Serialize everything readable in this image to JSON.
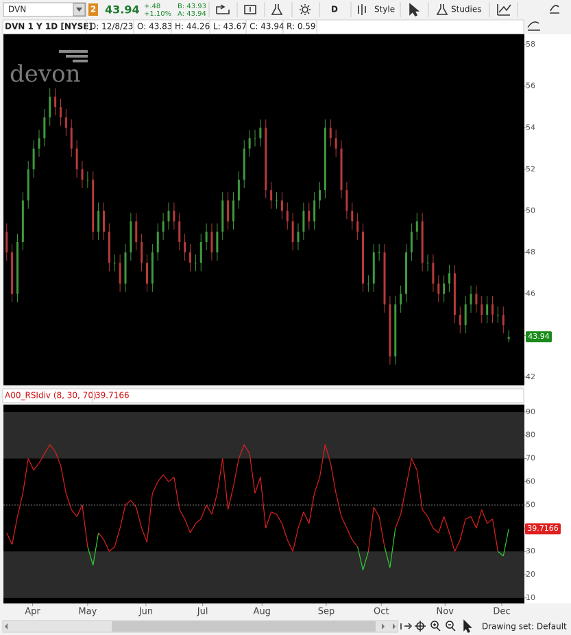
{
  "toolbar": {
    "symbol": "DVN",
    "link": "2",
    "last": "43.94",
    "change": "+.48",
    "change_pct": "+1.10%",
    "bid": "B: 43.93",
    "ask": "A: 43.94",
    "aggregation": "D",
    "style": "Style",
    "studies": "Studies"
  },
  "header": {
    "title": "DVN 1 Y 1D [NYSE]",
    "date": "D: 12/8/23",
    "open": "O: 43.83",
    "high": "H: 44.26",
    "low": "L: 43.67",
    "close": "C: 43.94",
    "range": "R: 0.59"
  },
  "watermark": "devon",
  "footer": {
    "drawing_set": "Drawing set: Default"
  },
  "chart_data": [
    {
      "type": "candlestick",
      "up_color": "#3f9a3f",
      "down_color": "#b83a3a",
      "label_color": "#1a8a1a",
      "open": [
        49,
        48,
        46,
        48.5,
        50.5,
        52,
        53,
        53.5,
        54.5,
        55.5,
        55,
        54.5,
        54,
        53,
        52,
        51.5,
        51.5,
        49,
        50,
        49,
        47.5,
        47.5,
        46.5,
        48,
        49.5,
        48.5,
        47.5,
        46.5,
        48,
        49,
        49.5,
        50,
        49.5,
        48.5,
        48,
        47.5,
        47.5,
        48.5,
        49,
        48,
        49,
        50.5,
        49.5,
        50.5,
        51.5,
        53,
        53.5,
        53.5,
        54,
        51,
        50.5,
        50.5,
        50,
        49.5,
        48.5,
        49,
        50,
        49.5,
        50.5,
        51,
        54,
        53.5,
        53,
        51,
        50,
        49.5,
        49,
        46.5,
        46.5,
        48,
        48,
        45.5,
        43,
        45.5,
        46,
        48,
        49,
        49.5,
        47.5,
        47.5,
        46.5,
        46,
        46.5,
        47,
        45,
        44.5,
        45.5,
        46,
        45.5,
        45,
        45.5,
        45,
        45,
        43.83
      ],
      "high": [
        49.4,
        48.4,
        48.9,
        50.9,
        52.4,
        53.4,
        53.9,
        54.9,
        55.9,
        55.9,
        55.4,
        54.9,
        54.4,
        53.4,
        52.4,
        51.9,
        51.9,
        50.4,
        50.4,
        49.4,
        47.9,
        47.9,
        48.4,
        49.9,
        49.9,
        48.9,
        47.9,
        48.4,
        49.4,
        49.9,
        50.4,
        50.4,
        49.9,
        48.9,
        48.4,
        47.9,
        48.9,
        49.4,
        49.4,
        49.4,
        50.9,
        50.9,
        50.9,
        51.9,
        53.4,
        53.9,
        53.9,
        54.4,
        54.4,
        51.4,
        50.9,
        50.9,
        50.4,
        49.9,
        49.4,
        50.4,
        50.4,
        50.9,
        51.4,
        54.4,
        54.4,
        53.9,
        53.4,
        51.4,
        50.4,
        49.9,
        49.4,
        46.9,
        48.4,
        48.4,
        48.4,
        45.9,
        45.9,
        46.4,
        48.4,
        49.4,
        49.9,
        49.9,
        47.9,
        47.9,
        46.9,
        46.9,
        47.4,
        47.4,
        45.4,
        45.9,
        46.4,
        46.4,
        45.9,
        45.9,
        45.9,
        45.4,
        45.4,
        44.26
      ],
      "low": [
        47.6,
        45.6,
        45.6,
        48.1,
        50.1,
        51.6,
        52.6,
        53.1,
        54.1,
        54.6,
        54.1,
        53.6,
        52.6,
        51.6,
        51.1,
        51.1,
        48.6,
        48.6,
        48.6,
        47.1,
        47.1,
        46.1,
        46.1,
        47.6,
        48.1,
        47.1,
        46.1,
        46.1,
        47.6,
        48.6,
        49.1,
        49.1,
        48.1,
        47.6,
        47.1,
        47.1,
        47.1,
        48.1,
        47.6,
        47.6,
        48.6,
        49.1,
        49.1,
        50.1,
        51.1,
        52.6,
        53.1,
        53.1,
        50.6,
        50.1,
        50.1,
        49.6,
        49.1,
        48.1,
        48.1,
        48.6,
        49.1,
        49.1,
        50.1,
        50.6,
        53.1,
        52.6,
        50.6,
        49.6,
        49.1,
        48.6,
        46.1,
        46.1,
        46.1,
        47.6,
        45.1,
        42.6,
        42.6,
        45.1,
        45.6,
        47.6,
        48.6,
        47.1,
        47.1,
        46.1,
        45.6,
        45.6,
        46.1,
        44.6,
        44.1,
        44.1,
        45.1,
        45.1,
        44.6,
        44.6,
        44.6,
        44.6,
        44.1,
        43.67
      ],
      "close": [
        48,
        46,
        48.5,
        50.5,
        52,
        53,
        53.5,
        54.5,
        55.5,
        55,
        54.5,
        54,
        53,
        52,
        51.5,
        51.5,
        49,
        50,
        49,
        47.5,
        47.5,
        46.5,
        48,
        49.5,
        48.5,
        47.5,
        46.5,
        48,
        49,
        49.5,
        50,
        49.5,
        48.5,
        48,
        47.5,
        47.5,
        48.5,
        49,
        48,
        49,
        50.5,
        49.5,
        50.5,
        51.5,
        53,
        53.5,
        53.5,
        54,
        51,
        50.5,
        50.5,
        50,
        49.5,
        48.5,
        49,
        50,
        49.5,
        50.5,
        51,
        54,
        53.5,
        53,
        51,
        50,
        49.5,
        49,
        46.5,
        46.5,
        48,
        48,
        45.5,
        43,
        45.5,
        46,
        48,
        49,
        49.5,
        47.5,
        47.5,
        46.5,
        46,
        46.5,
        47,
        45,
        44.5,
        45.5,
        46,
        45.5,
        45,
        45.5,
        45,
        45,
        44.5,
        43.94
      ],
      "xlim": [
        -0.6,
        95.9
      ],
      "ylim": [
        41.6,
        58.5
      ],
      "yticks": [
        42,
        44,
        46,
        48,
        50,
        52,
        54,
        56,
        58
      ]
    },
    {
      "type": "line",
      "title": "A00_RSIdiv (8, 30, 70)",
      "color": "#e02020",
      "oversold_color": "#33cc33",
      "label_color": "#e02020",
      "values": [
        38,
        33,
        45,
        55,
        70,
        65,
        68,
        72,
        76,
        73,
        67,
        55,
        48,
        45,
        50,
        32,
        24,
        38,
        35,
        30,
        32,
        40,
        50,
        52,
        49,
        40,
        34,
        55,
        60,
        63,
        60,
        62,
        48,
        44,
        38,
        42,
        44,
        50,
        46,
        55,
        70,
        48,
        58,
        70,
        76,
        72,
        55,
        62,
        40,
        47,
        46,
        42,
        35,
        30,
        40,
        47,
        42,
        55,
        62,
        76,
        68,
        55,
        45,
        40,
        35,
        32,
        22,
        30,
        49,
        45,
        32,
        23,
        40,
        46,
        58,
        70,
        65,
        48,
        45,
        40,
        38,
        45,
        38,
        30,
        35,
        44,
        45,
        40,
        48,
        42,
        44,
        30,
        28,
        39.7166
      ],
      "zones": [
        [
          10,
          30
        ],
        [
          70,
          90
        ]
      ],
      "midline": 50,
      "xlim": [
        -0.6,
        95.9
      ],
      "ylim": [
        7.6,
        93.2
      ],
      "yticks": [
        10,
        20,
        30,
        40,
        50,
        60,
        70,
        80,
        90
      ],
      "xticks": [
        {
          "value": 4.8,
          "label": "Apr"
        },
        {
          "value": 15,
          "label": "May"
        },
        {
          "value": 25.8,
          "label": "Jun"
        },
        {
          "value": 36.3,
          "label": "Jul"
        },
        {
          "value": 47.3,
          "label": "Aug"
        },
        {
          "value": 59.2,
          "label": "Sep"
        },
        {
          "value": 69.4,
          "label": "Oct"
        },
        {
          "value": 81.2,
          "label": "Nov"
        },
        {
          "value": 91.7,
          "label": "Dec"
        }
      ]
    }
  ]
}
